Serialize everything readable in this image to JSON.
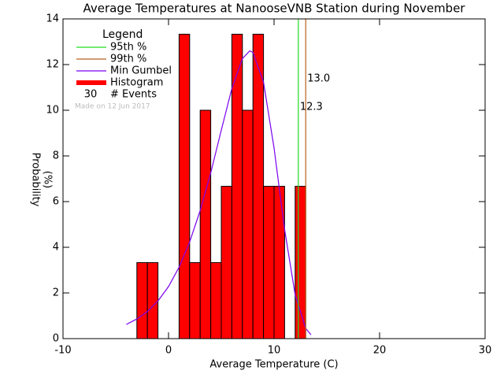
{
  "chart_data": {
    "type": "histogram",
    "title": "Average Temperatures at NanooseVNB Station during November",
    "xlabel": "Average Temperature (C)",
    "ylabel": [
      "Probability",
      "(%)"
    ],
    "xlim": [
      -10,
      30
    ],
    "ylim": [
      0,
      14
    ],
    "xticks": [
      -10,
      0,
      10,
      20,
      30
    ],
    "yticks": [
      0,
      2,
      4,
      6,
      8,
      10,
      12,
      14
    ],
    "bins": [
      -3,
      -2,
      -1,
      0,
      1,
      2,
      3,
      4,
      5,
      6,
      7,
      8,
      9,
      10,
      11,
      12,
      13
    ],
    "values": [
      3.33,
      3.33,
      0,
      0,
      13.33,
      3.33,
      10,
      3.33,
      6.67,
      13.33,
      10,
      13.33,
      6.67,
      6.67,
      0,
      6.67
    ],
    "color": "#ff0000",
    "histogram_name": "Histogram",
    "legend_title": "Legend",
    "events": 30,
    "events_label": "# Events",
    "note": "Made on 12 Jun 2017",
    "percentiles": [
      {
        "name": "95th %",
        "value": 12.3,
        "label": "12.3",
        "color": "#22dd22"
      },
      {
        "name": "99th %",
        "value": 13.0,
        "label": "13.0",
        "color": "#b8601c"
      }
    ],
    "curve": {
      "name": "Min Gumbel",
      "color": "#7a00f0",
      "x": [
        -4,
        -3,
        -2,
        -1,
        0,
        1,
        2,
        3,
        4,
        5,
        6,
        7,
        7.7,
        8,
        9,
        10,
        11,
        12,
        13,
        13.5
      ],
      "values": [
        0.62,
        0.86,
        1.19,
        1.65,
        2.28,
        3.13,
        4.23,
        5.61,
        7.26,
        9.13,
        10.95,
        12.26,
        12.6,
        12.53,
        11.23,
        8.35,
        4.78,
        1.92,
        0.45,
        0.17
      ]
    }
  }
}
